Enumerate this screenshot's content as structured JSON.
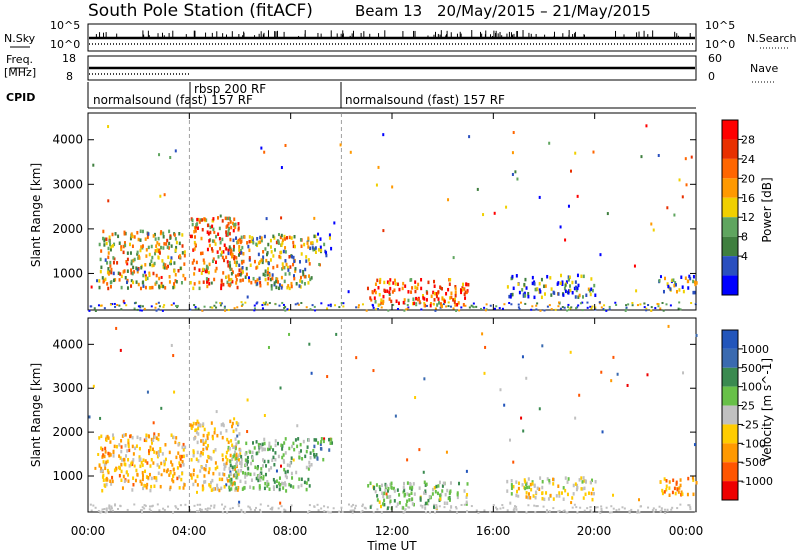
{
  "header": {
    "station": "South Pole Station (fitACF)",
    "beam": "Beam 13",
    "date_range": "20/May/2015 – 21/May/2015"
  },
  "top_panels": {
    "nsky": {
      "label": "N.Sky",
      "ticks": [
        "10^5",
        "10^0"
      ]
    },
    "nsearch": {
      "label": "N.Search",
      "ticks": [
        "10^5",
        "10^0"
      ]
    },
    "freq": {
      "label_line1": "Freq.",
      "label_line2": "[MHz]",
      "ticks": [
        "18",
        "8"
      ]
    },
    "nave": {
      "label": "Nave",
      "ticks": [
        "60",
        "0"
      ]
    },
    "cpid": {
      "label": "CPID",
      "segments": [
        {
          "name": "normalsound (fast) 157 RF",
          "start_hour": 0,
          "end_hour": 10
        },
        {
          "name": "rbsp 200 RF",
          "start_hour": 4,
          "end_hour": 10
        },
        {
          "name": "normalsound (fast) 157 RF",
          "start_hour": 10,
          "end_hour": 24
        }
      ]
    }
  },
  "colors": {
    "power": [
      "#0000ff",
      "#2a4fbf",
      "#3f7f3f",
      "#5fa55f",
      "#f0d000",
      "#ff9900",
      "#ff6600",
      "#e83000",
      "#ff0000"
    ],
    "velocity": [
      "#2255bb",
      "#3a6ab0",
      "#3a8a50",
      "#68c048",
      "#c0c0c0",
      "#ffcc00",
      "#ff9900",
      "#ff5500",
      "#ee0000"
    ]
  },
  "chart_data": [
    {
      "type": "heatmap",
      "title": "Power",
      "xlabel": "",
      "ylabel": "Slant Range [km]",
      "xlim": [
        0,
        24
      ],
      "ylim": [
        180,
        4600
      ],
      "yticks": [
        1000,
        2000,
        3000,
        4000
      ],
      "xticks": [
        0,
        4,
        8,
        12,
        16,
        20,
        24
      ],
      "colorbar": {
        "label": "Power [dB]",
        "ticks": [
          "28",
          "24",
          "20",
          "16",
          "12",
          "8",
          "4"
        ],
        "range": [
          0,
          30
        ]
      },
      "regions": [
        {
          "t0": 0.4,
          "t1": 3.8,
          "r0": 700,
          "r1": 2000,
          "level": 16
        },
        {
          "t0": 4.0,
          "t1": 6.0,
          "r0": 700,
          "r1": 2300,
          "level": 20
        },
        {
          "t0": 5.5,
          "t1": 8.8,
          "r0": 700,
          "r1": 1900,
          "level": 14
        },
        {
          "t0": 8.8,
          "t1": 9.6,
          "r0": 1400,
          "r1": 1900,
          "level": 8
        },
        {
          "t0": 11.0,
          "t1": 15.0,
          "r0": 300,
          "r1": 900,
          "level": 22
        },
        {
          "t0": 16.5,
          "t1": 20.0,
          "r0": 500,
          "r1": 1000,
          "level": 8
        },
        {
          "t0": 22.5,
          "t1": 24.0,
          "r0": 600,
          "r1": 1000,
          "level": 10
        }
      ]
    },
    {
      "type": "heatmap",
      "title": "Velocity",
      "xlabel": "Time UT",
      "ylabel": "Slant Range [km]",
      "xlim": [
        0,
        24
      ],
      "ylim": [
        180,
        4600
      ],
      "yticks": [
        1000,
        2000,
        3000,
        4000
      ],
      "xticks": [
        0,
        4,
        8,
        12,
        16,
        20,
        24
      ],
      "colorbar": {
        "label": "Velocity [m s^-1]",
        "ticks": [
          "1000",
          "500",
          "100",
          "25",
          "-25",
          "-100",
          "-500",
          "-1000"
        ],
        "range": [
          -1000,
          1000
        ]
      },
      "regions": [
        {
          "t0": 0.4,
          "t1": 3.8,
          "r0": 700,
          "r1": 2000,
          "level": -300
        },
        {
          "t0": 4.0,
          "t1": 6.0,
          "r0": 700,
          "r1": 2300,
          "level": -200
        },
        {
          "t0": 5.5,
          "t1": 8.8,
          "r0": 700,
          "r1": 1900,
          "level": 200
        },
        {
          "t0": 8.8,
          "t1": 9.6,
          "r0": 1400,
          "r1": 1900,
          "level": 400
        },
        {
          "t0": 11.0,
          "t1": 15.0,
          "r0": 300,
          "r1": 900,
          "level": 150
        },
        {
          "t0": 16.5,
          "t1": 20.0,
          "r0": 500,
          "r1": 1000,
          "level": -100
        },
        {
          "t0": 22.5,
          "t1": 24.0,
          "r0": 600,
          "r1": 1000,
          "level": -400
        }
      ]
    }
  ],
  "axis": {
    "ylabel": "Slant Range [km]",
    "xlabel": "Time UT",
    "xtick_labels": [
      "00:00",
      "04:00",
      "08:00",
      "12:00",
      "16:00",
      "20:00",
      "00:00"
    ],
    "ytick_labels": [
      "1000",
      "2000",
      "3000",
      "4000"
    ]
  }
}
